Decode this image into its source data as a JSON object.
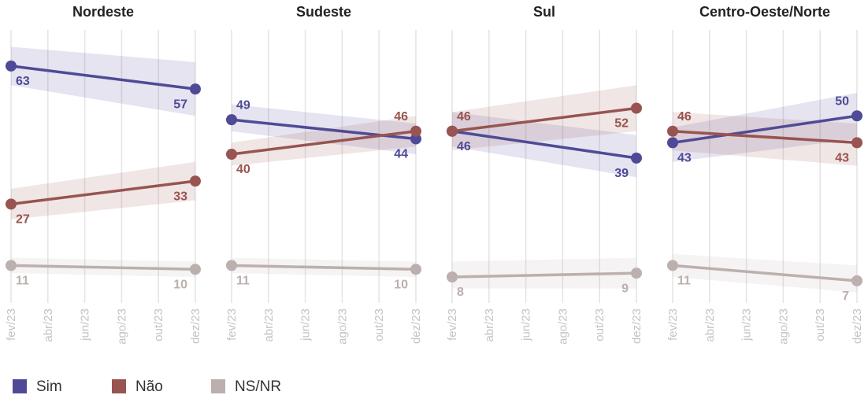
{
  "chart_data": [
    {
      "type": "line",
      "title": "Nordeste",
      "x": [
        2,
        12
      ],
      "xlim": [
        2,
        12
      ],
      "xticks": [
        {
          "value": 2,
          "label": "fev/23"
        },
        {
          "value": 4,
          "label": "abr/23"
        },
        {
          "value": 6,
          "label": "jun/23"
        },
        {
          "value": 8,
          "label": "ago/23"
        },
        {
          "value": 10,
          "label": "out/23"
        },
        {
          "value": 12,
          "label": "dez/23"
        }
      ],
      "ylim": [
        0,
        72
      ],
      "grid": true,
      "series": [
        {
          "name": "Sim",
          "color": "#4f4a97",
          "values": [
            63,
            57
          ],
          "lower": [
            58,
            50
          ],
          "upper": [
            68,
            64
          ]
        },
        {
          "name": "Não",
          "color": "#985450",
          "values": [
            27,
            33
          ],
          "lower": [
            23,
            28
          ],
          "upper": [
            31,
            38
          ]
        },
        {
          "name": "NS/NR",
          "color": "#bbb0ad",
          "values": [
            11,
            10
          ],
          "lower": [
            9,
            8
          ],
          "upper": [
            13,
            12
          ]
        }
      ]
    },
    {
      "type": "line",
      "title": "Sudeste",
      "x": [
        2,
        12
      ],
      "xlim": [
        2,
        12
      ],
      "xticks": [
        {
          "value": 2,
          "label": "fev/23"
        },
        {
          "value": 4,
          "label": "abr/23"
        },
        {
          "value": 6,
          "label": "jun/23"
        },
        {
          "value": 8,
          "label": "ago/23"
        },
        {
          "value": 10,
          "label": "out/23"
        },
        {
          "value": 12,
          "label": "dez/23"
        }
      ],
      "ylim": [
        0,
        72
      ],
      "grid": true,
      "series": [
        {
          "name": "Sim",
          "color": "#4f4a97",
          "values": [
            49,
            44
          ],
          "lower": [
            46,
            40
          ],
          "upper": [
            53,
            48
          ]
        },
        {
          "name": "Não",
          "color": "#985450",
          "values": [
            40,
            46
          ],
          "lower": [
            37,
            42
          ],
          "upper": [
            43,
            50
          ]
        },
        {
          "name": "NS/NR",
          "color": "#bbb0ad",
          "values": [
            11,
            10
          ],
          "lower": [
            9,
            8
          ],
          "upper": [
            13,
            12
          ]
        }
      ]
    },
    {
      "type": "line",
      "title": "Sul",
      "x": [
        2,
        12
      ],
      "xlim": [
        2,
        12
      ],
      "xticks": [
        {
          "value": 2,
          "label": "fev/23"
        },
        {
          "value": 4,
          "label": "abr/23"
        },
        {
          "value": 6,
          "label": "jun/23"
        },
        {
          "value": 8,
          "label": "ago/23"
        },
        {
          "value": 10,
          "label": "out/23"
        },
        {
          "value": 12,
          "label": "dez/23"
        }
      ],
      "ylim": [
        0,
        72
      ],
      "grid": true,
      "series": [
        {
          "name": "Sim",
          "color": "#4f4a97",
          "values": [
            46,
            39
          ],
          "lower": [
            42,
            34
          ],
          "upper": [
            51,
            45
          ]
        },
        {
          "name": "Não",
          "color": "#985450",
          "values": [
            46,
            52
          ],
          "lower": [
            41,
            46
          ],
          "upper": [
            51,
            58
          ]
        },
        {
          "name": "NS/NR",
          "color": "#bbb0ad",
          "values": [
            8,
            9
          ],
          "lower": [
            5,
            5
          ],
          "upper": [
            12,
            13
          ]
        }
      ]
    },
    {
      "type": "line",
      "title": "Centro-Oeste/Norte",
      "x": [
        2,
        12
      ],
      "xlim": [
        2,
        12
      ],
      "xticks": [
        {
          "value": 2,
          "label": "fev/23"
        },
        {
          "value": 4,
          "label": "abr/23"
        },
        {
          "value": 6,
          "label": "jun/23"
        },
        {
          "value": 8,
          "label": "ago/23"
        },
        {
          "value": 10,
          "label": "out/23"
        },
        {
          "value": 12,
          "label": "dez/23"
        }
      ],
      "ylim": [
        0,
        72
      ],
      "grid": true,
      "series": [
        {
          "name": "Sim",
          "color": "#4f4a97",
          "values": [
            43,
            50
          ],
          "lower": [
            38,
            44
          ],
          "upper": [
            47,
            56
          ]
        },
        {
          "name": "Não",
          "color": "#985450",
          "values": [
            46,
            43
          ],
          "lower": [
            41,
            37
          ],
          "upper": [
            51,
            48
          ]
        },
        {
          "name": "NS/NR",
          "color": "#bbb0ad",
          "values": [
            11,
            7
          ],
          "lower": [
            8,
            4
          ],
          "upper": [
            14,
            11
          ]
        }
      ]
    }
  ]
}
